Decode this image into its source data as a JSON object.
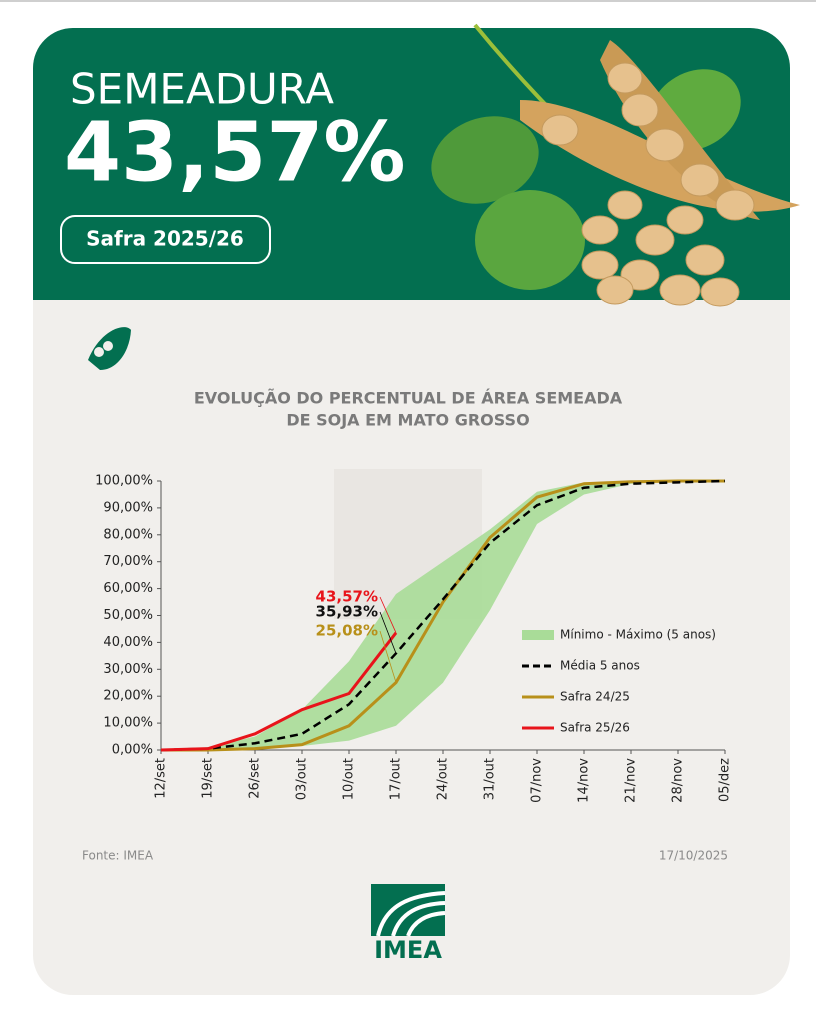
{
  "header": {
    "title": "SEMEADURA",
    "value": "43,57%",
    "season": "Safra 2025/26"
  },
  "chart_data": {
    "type": "line",
    "title": [
      "EVOLUÇÃO DO PERCENTUAL DE ÁREA SEMEADA",
      "DE SOJA EM MATO GROSSO"
    ],
    "categories": [
      "12/set",
      "19/set",
      "26/set",
      "03/out",
      "10/out",
      "17/out",
      "24/out",
      "31/out",
      "07/nov",
      "14/nov",
      "21/nov",
      "28/nov",
      "05/dez"
    ],
    "range": {
      "name": "Mínimo - Máximo (5 anos)",
      "color": "#a9dc98",
      "min": [
        0,
        0,
        0.5,
        1.5,
        3.5,
        9,
        25,
        52,
        84,
        95,
        99,
        99.8,
        100
      ],
      "max": [
        0,
        1,
        5,
        15,
        33,
        58,
        70,
        82,
        96,
        99.5,
        100,
        100,
        100
      ]
    },
    "series": [
      {
        "name": "Média 5 anos",
        "color": "#000000",
        "dash": true,
        "values": [
          0,
          0.5,
          2.5,
          6,
          17,
          35.93,
          56,
          77,
          91,
          97.5,
          99,
          99.5,
          100
        ],
        "value_labels": [
          null,
          null,
          null,
          null,
          null,
          "35,93%",
          null,
          null,
          null,
          null,
          null,
          null,
          null
        ]
      },
      {
        "name": "Safra 24/25",
        "color": "#b8901a",
        "dash": false,
        "values": [
          0,
          0,
          0.5,
          2,
          9,
          25.08,
          55,
          79,
          94,
          99,
          99.7,
          100,
          100
        ],
        "value_labels": [
          null,
          null,
          null,
          null,
          null,
          "25,08%",
          null,
          null,
          null,
          null,
          null,
          null,
          null
        ]
      },
      {
        "name": "Safra 25/26",
        "color": "#e8141b",
        "dash": false,
        "values": [
          0,
          0.5,
          6,
          15,
          21,
          43.57,
          null,
          null,
          null,
          null,
          null,
          null,
          null
        ],
        "value_labels": [
          null,
          null,
          null,
          null,
          null,
          "43,57%",
          null,
          null,
          null,
          null,
          null,
          null,
          null
        ]
      }
    ],
    "ylim": [
      0,
      100
    ],
    "yticks": [
      {
        "value": 0,
        "label": "0,00%"
      },
      {
        "value": 10,
        "label": "10,00%"
      },
      {
        "value": 20,
        "label": "20,00%"
      },
      {
        "value": 30,
        "label": "30,00%"
      },
      {
        "value": 40,
        "label": "40,00%"
      },
      {
        "value": 50,
        "label": "50,00%"
      },
      {
        "value": 60,
        "label": "60,00%"
      },
      {
        "value": 70,
        "label": "70,00%"
      },
      {
        "value": 80,
        "label": "80,00%"
      },
      {
        "value": 90,
        "label": "90,00%"
      },
      {
        "value": 100,
        "label": "100,00%"
      }
    ],
    "grid": false
  },
  "footer": {
    "source": "Fonte: IMEA",
    "date": "17/10/2025",
    "logo": "IMEA"
  }
}
